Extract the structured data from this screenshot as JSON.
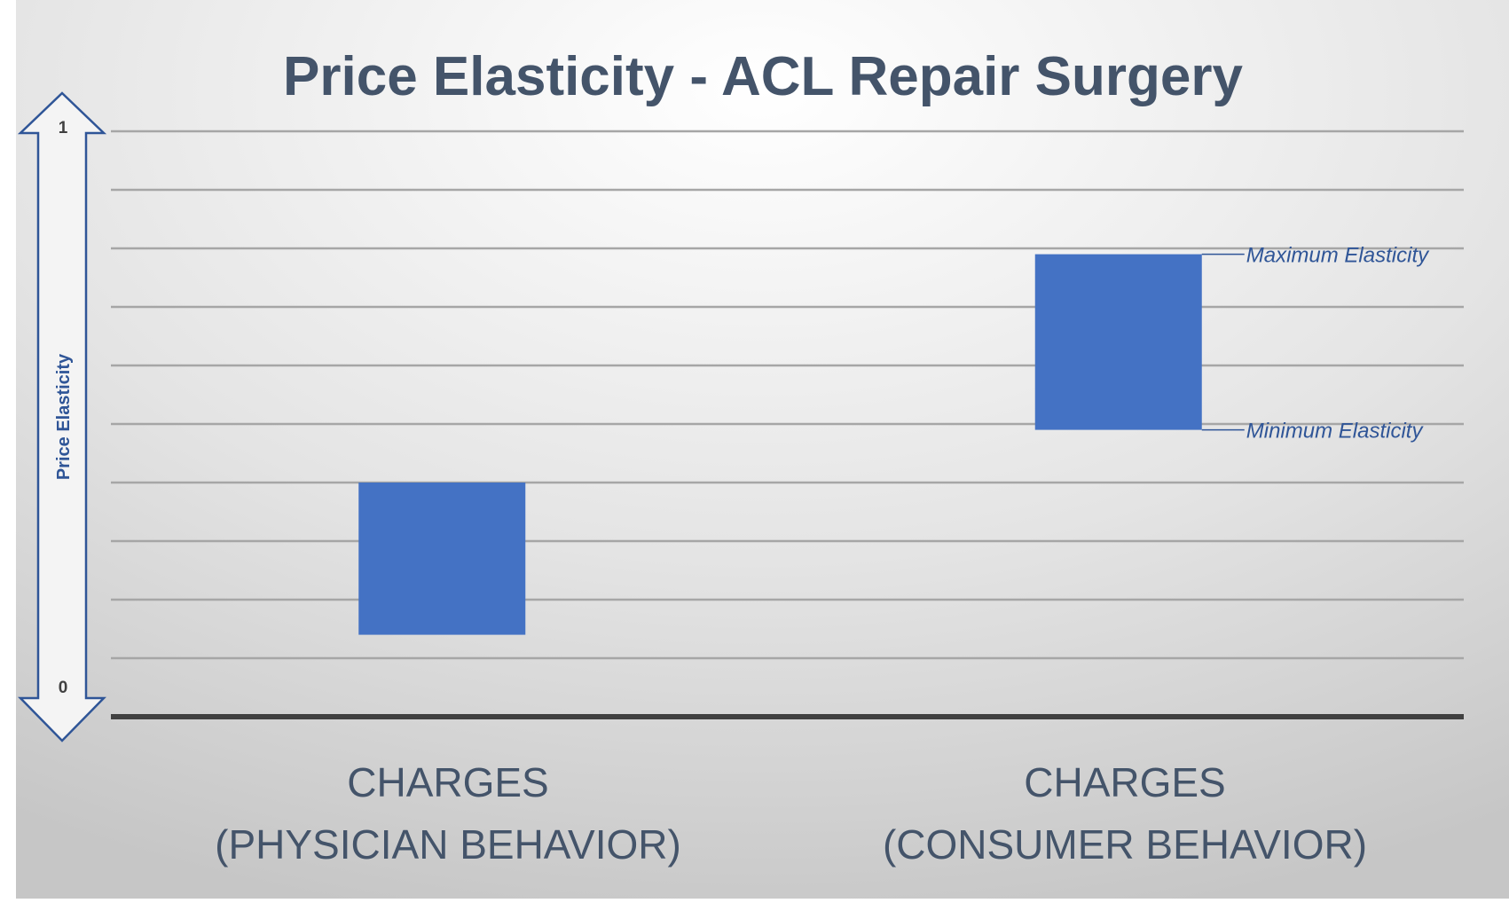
{
  "chart_data": {
    "type": "bar",
    "title": "Price Elasticity - ACL Repair Surgery",
    "ylabel": "Price Elasticity",
    "ylim": [
      0,
      1
    ],
    "tick_labels": {
      "min": "0",
      "max": "1"
    },
    "grid": true,
    "categories": [
      {
        "line1": "CHARGES",
        "line2": "(PHYSICIAN BEHAVIOR)"
      },
      {
        "line1": "CHARGES",
        "line2": "(CONSUMER BEHAVIOR)"
      }
    ],
    "ranges": [
      {
        "min": 0.14,
        "max": 0.4
      },
      {
        "min": 0.49,
        "max": 0.79
      }
    ],
    "annotations": {
      "max_label": "Maximum Elasticity",
      "min_label": "Minimum Elasticity"
    },
    "colors": {
      "bar": "#4472c4",
      "text": "#44546a",
      "annotation": "#2f5597",
      "gridline": "#a6a6a6",
      "axis": "#404040"
    }
  }
}
